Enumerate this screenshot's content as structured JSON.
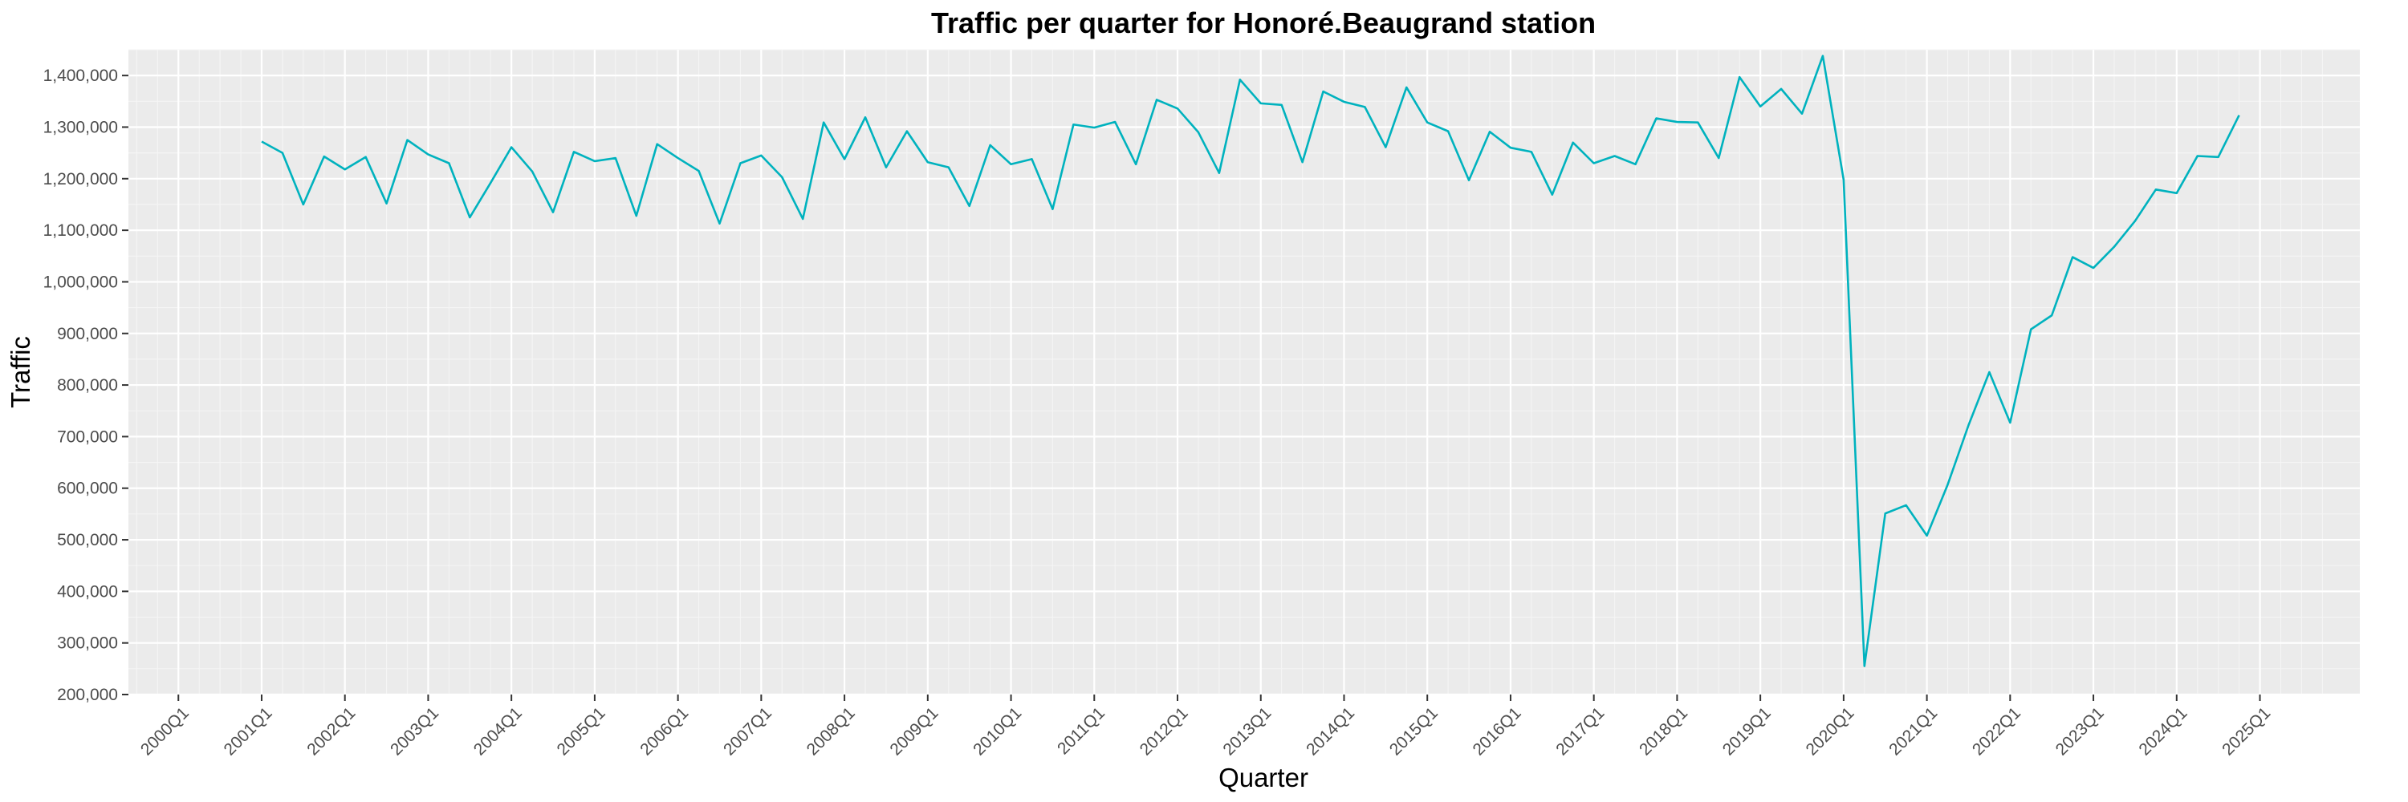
{
  "chart_data": {
    "type": "line",
    "title": "Traffic per quarter for Honoré.Beaugrand station",
    "xlabel": "Quarter",
    "ylabel": "Traffic",
    "series_color": "#00b2be",
    "panel_background": "#ebebeb",
    "grid": true,
    "x_range": [
      2000.0,
      2025.0
    ],
    "ylim": [
      200000,
      1450000
    ],
    "x_ticks": [
      "2000Q1",
      "2001Q1",
      "2002Q1",
      "2003Q1",
      "2004Q1",
      "2005Q1",
      "2006Q1",
      "2007Q1",
      "2008Q1",
      "2009Q1",
      "2010Q1",
      "2011Q1",
      "2012Q1",
      "2013Q1",
      "2014Q1",
      "2015Q1",
      "2016Q1",
      "2017Q1",
      "2018Q1",
      "2019Q1",
      "2020Q1",
      "2021Q1",
      "2022Q1",
      "2023Q1",
      "2024Q1",
      "2025Q1"
    ],
    "y_ticks": [
      "200,000",
      "300,000",
      "400,000",
      "500,000",
      "600,000",
      "700,000",
      "800,000",
      "900,000",
      "1,000,000",
      "1,100,000",
      "1,200,000",
      "1,300,000",
      "1,400,000"
    ],
    "series": [
      {
        "x": [
          "2001Q1",
          "2001Q2",
          "2001Q3",
          "2001Q4",
          "2002Q1",
          "2002Q2",
          "2002Q3",
          "2002Q4",
          "2003Q1",
          "2003Q2",
          "2003Q3",
          "2003Q4",
          "2004Q1",
          "2004Q2",
          "2004Q3",
          "2004Q4",
          "2005Q1",
          "2005Q2",
          "2005Q3",
          "2005Q4",
          "2006Q1",
          "2006Q2",
          "2006Q3",
          "2006Q4",
          "2007Q1",
          "2007Q2",
          "2007Q3",
          "2007Q4",
          "2008Q1",
          "2008Q2",
          "2008Q3",
          "2008Q4",
          "2009Q1",
          "2009Q2",
          "2009Q3",
          "2009Q4",
          "2010Q1",
          "2010Q2",
          "2010Q3",
          "2010Q4",
          "2011Q1",
          "2011Q2",
          "2011Q3",
          "2011Q4",
          "2012Q1",
          "2012Q2",
          "2012Q3",
          "2012Q4",
          "2013Q1",
          "2013Q2",
          "2013Q3",
          "2013Q4",
          "2014Q1",
          "2014Q2",
          "2014Q3",
          "2014Q4",
          "2015Q1",
          "2015Q2",
          "2015Q3",
          "2015Q4",
          "2016Q1",
          "2016Q2",
          "2016Q3",
          "2016Q4",
          "2017Q1",
          "2017Q2",
          "2017Q3",
          "2017Q4",
          "2018Q1",
          "2018Q2",
          "2018Q3",
          "2018Q4",
          "2019Q1",
          "2019Q2",
          "2019Q3",
          "2019Q4",
          "2020Q1",
          "2020Q2",
          "2020Q3",
          "2020Q4",
          "2021Q1",
          "2021Q2",
          "2021Q3",
          "2021Q4",
          "2022Q1",
          "2022Q2",
          "2022Q3",
          "2022Q4",
          "2023Q1",
          "2023Q2",
          "2023Q3",
          "2023Q4",
          "2024Q1",
          "2024Q2",
          "2024Q3",
          "2024Q4"
        ],
        "values": [
          1272000,
          1250000,
          1150000,
          1243000,
          1218000,
          1242000,
          1152000,
          1275000,
          1247000,
          1230000,
          1125000,
          1192000,
          1261000,
          1214000,
          1135000,
          1252000,
          1234000,
          1240000,
          1128000,
          1267000,
          1240000,
          1215000,
          1113000,
          1230000,
          1245000,
          1203000,
          1122000,
          1309000,
          1238000,
          1319000,
          1222000,
          1292000,
          1232000,
          1222000,
          1147000,
          1265000,
          1228000,
          1238000,
          1141000,
          1305000,
          1299000,
          1310000,
          1228000,
          1353000,
          1336000,
          1290000,
          1211000,
          1392000,
          1346000,
          1343000,
          1232000,
          1369000,
          1349000,
          1339000,
          1261000,
          1377000,
          1309000,
          1292000,
          1197000,
          1291000,
          1260000,
          1252000,
          1169000,
          1270000,
          1230000,
          1244000,
          1228000,
          1317000,
          1310000,
          1309000,
          1240000,
          1397000,
          1340000,
          1374000,
          1326000,
          1438000,
          1198000,
          255000,
          551000,
          567000,
          508000,
          607000,
          722000,
          825000,
          727000,
          908000,
          935000,
          1048000,
          1027000,
          1068000,
          1118000,
          1179000,
          1172000,
          1244000,
          1242000,
          1323000
        ]
      }
    ]
  }
}
